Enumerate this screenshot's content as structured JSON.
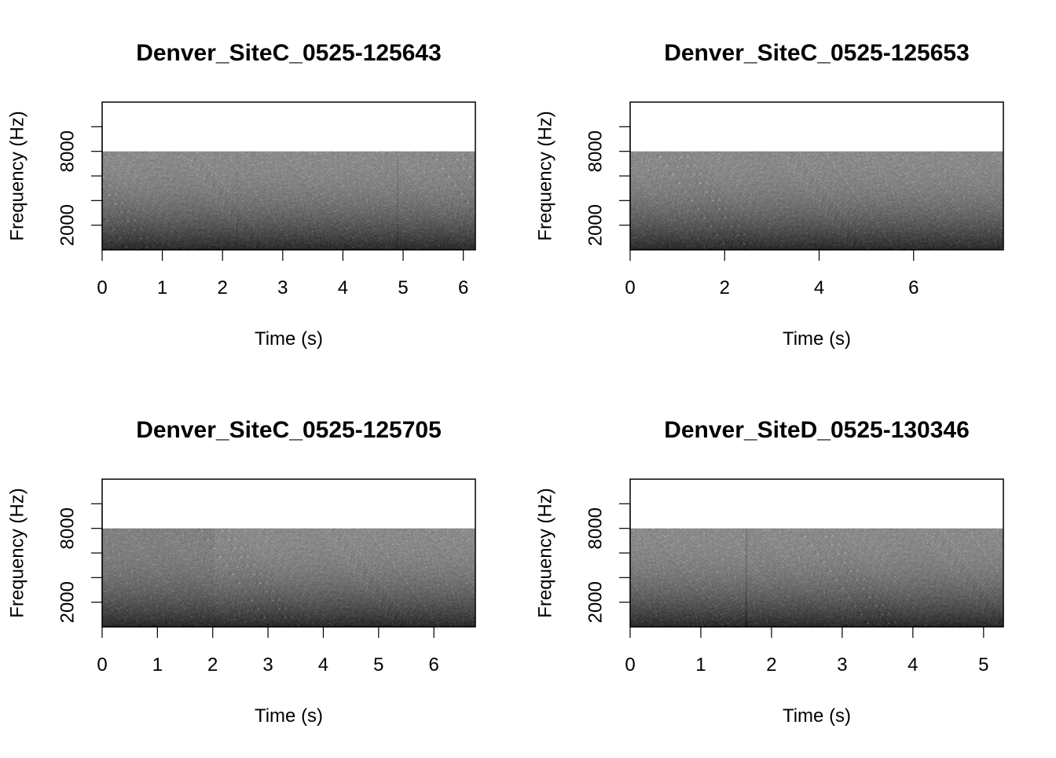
{
  "chart_data": [
    {
      "type": "heatmap",
      "title": "Denver_SiteC_0525-125643",
      "xlabel": "Time (s)",
      "ylabel": "Frequency (Hz)",
      "xlim": [
        0,
        6.2
      ],
      "ylim": [
        0,
        12000
      ],
      "x_ticks": [
        0,
        1,
        2,
        3,
        4,
        5,
        6
      ],
      "y_ticks": [
        2000,
        4000,
        6000,
        8000,
        10000
      ],
      "y_tick_labels": [
        "2000",
        "",
        "",
        "8000",
        ""
      ],
      "signal_max_frequency": 8000,
      "duration": 6.2,
      "colormap": "grayscale",
      "tone_low": "#2a2a2a",
      "tone_high": "#8a8a8a"
    },
    {
      "type": "heatmap",
      "title": "Denver_SiteC_0525-125653",
      "xlabel": "Time (s)",
      "ylabel": "Frequency (Hz)",
      "xlim": [
        0,
        7.9
      ],
      "ylim": [
        0,
        12000
      ],
      "x_ticks": [
        0,
        2,
        4,
        6
      ],
      "y_ticks": [
        2000,
        4000,
        6000,
        8000,
        10000
      ],
      "y_tick_labels": [
        "2000",
        "",
        "",
        "8000",
        ""
      ],
      "signal_max_frequency": 8000,
      "duration": 7.9,
      "colormap": "grayscale",
      "tone_low": "#2a2a2a",
      "tone_high": "#8a8a8a"
    },
    {
      "type": "heatmap",
      "title": "Denver_SiteC_0525-125705",
      "xlabel": "Time (s)",
      "ylabel": "Frequency (Hz)",
      "xlim": [
        0,
        6.75
      ],
      "ylim": [
        0,
        12000
      ],
      "x_ticks": [
        0,
        1,
        2,
        3,
        4,
        5,
        6
      ],
      "y_ticks": [
        2000,
        4000,
        6000,
        8000,
        10000
      ],
      "y_tick_labels": [
        "2000",
        "",
        "",
        "8000",
        ""
      ],
      "signal_max_frequency": 8000,
      "duration": 6.75,
      "colormap": "grayscale",
      "tone_low": "#2a2a2a",
      "tone_high": "#8a8a8a"
    },
    {
      "type": "heatmap",
      "title": "Denver_SiteD_0525-130346",
      "xlabel": "Time (s)",
      "ylabel": "Frequency (Hz)",
      "xlim": [
        0,
        5.28
      ],
      "ylim": [
        0,
        12000
      ],
      "x_ticks": [
        0,
        1,
        2,
        3,
        4,
        5
      ],
      "y_ticks": [
        2000,
        4000,
        6000,
        8000,
        10000
      ],
      "y_tick_labels": [
        "2000",
        "",
        "",
        "8000",
        ""
      ],
      "signal_max_frequency": 8000,
      "duration": 5.28,
      "colormap": "grayscale",
      "tone_low": "#2a2a2a",
      "tone_high": "#8a8a8a"
    }
  ]
}
